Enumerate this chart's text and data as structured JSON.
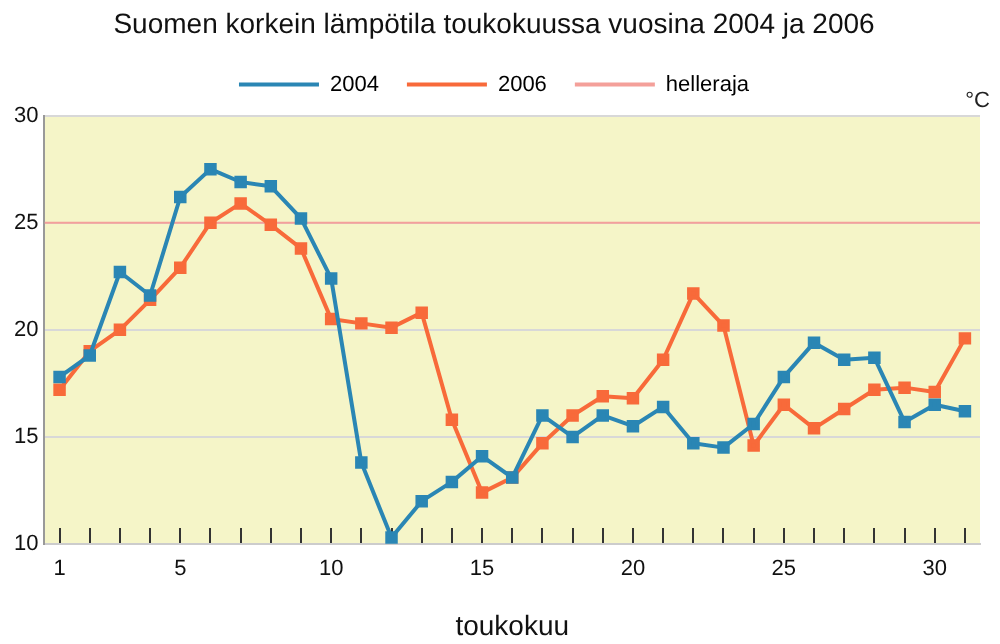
{
  "chart_data": {
    "type": "line",
    "title": "Suomen korkein lämpötila toukokuussa vuosina 2004 ja 2006",
    "xlabel": "toukokuu",
    "ylabel": "°C",
    "x": [
      1,
      2,
      3,
      4,
      5,
      6,
      7,
      8,
      9,
      10,
      11,
      12,
      13,
      14,
      15,
      16,
      17,
      18,
      19,
      20,
      21,
      22,
      23,
      24,
      25,
      26,
      27,
      28,
      29,
      30,
      31
    ],
    "series": [
      {
        "name": "2004",
        "color": "#2a86b4",
        "values": [
          17.8,
          18.8,
          22.7,
          21.6,
          26.2,
          27.5,
          26.9,
          26.7,
          25.2,
          22.4,
          13.8,
          10.3,
          12.0,
          12.9,
          14.1,
          13.1,
          16.0,
          15.0,
          16.0,
          15.5,
          16.4,
          14.7,
          14.5,
          15.6,
          17.8,
          19.4,
          18.6,
          18.7,
          15.7,
          16.5,
          16.2
        ]
      },
      {
        "name": "2006",
        "color": "#f86a3a",
        "values": [
          17.2,
          19.0,
          20.0,
          21.4,
          22.9,
          25.0,
          25.9,
          24.9,
          23.8,
          20.5,
          20.3,
          20.1,
          20.8,
          15.8,
          12.4,
          13.1,
          14.7,
          16.0,
          16.9,
          16.8,
          18.6,
          21.7,
          20.2,
          14.6,
          16.5,
          15.4,
          16.3,
          17.2,
          17.3,
          17.1,
          19.6
        ]
      }
    ],
    "ref_lines": [
      {
        "axis": "y",
        "value": 25,
        "label": "helleraja",
        "color": "#f4a09a"
      }
    ],
    "xlim": [
      0.5,
      31.5
    ],
    "xticks": [
      1,
      {
        "value": 2,
        "label": null
      },
      {
        "value": 3,
        "label": null
      },
      {
        "value": 4,
        "label": null
      },
      5,
      {
        "value": 6,
        "label": null
      },
      {
        "value": 7,
        "label": null
      },
      {
        "value": 8,
        "label": null
      },
      {
        "value": 9,
        "label": null
      },
      10,
      {
        "value": 11,
        "label": null
      },
      {
        "value": 12,
        "label": null
      },
      {
        "value": 13,
        "label": null
      },
      {
        "value": 14,
        "label": null
      },
      15,
      {
        "value": 16,
        "label": null
      },
      {
        "value": 17,
        "label": null
      },
      {
        "value": 18,
        "label": null
      },
      {
        "value": 19,
        "label": null
      },
      20,
      {
        "value": 21,
        "label": null
      },
      {
        "value": 22,
        "label": null
      },
      {
        "value": 23,
        "label": null
      },
      {
        "value": 24,
        "label": null
      },
      25,
      {
        "value": 26,
        "label": null
      },
      {
        "value": 27,
        "label": null
      },
      {
        "value": 28,
        "label": null
      },
      {
        "value": 29,
        "label": null
      },
      30,
      {
        "value": 31,
        "label": null
      }
    ],
    "ylim": [
      10,
      30
    ],
    "yticks": [
      10,
      15,
      20,
      25,
      30
    ],
    "grid": "y",
    "legend": "top",
    "marker": "square",
    "line_style": "solid"
  }
}
